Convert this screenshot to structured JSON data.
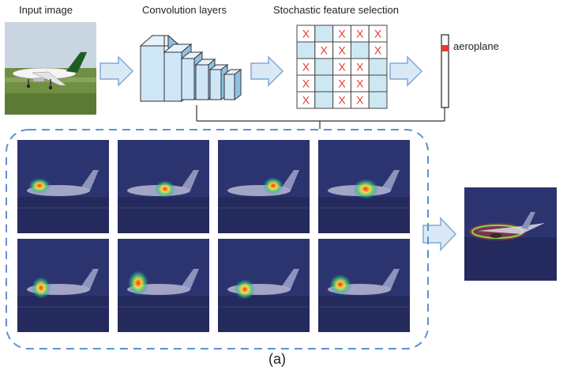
{
  "labels": {
    "input_image": "Input image",
    "convolution_layers": "Convolution layers",
    "stochastic_selection": "Stochastic feature selection",
    "class_label": "aeroplane",
    "caption": "(a)"
  },
  "selection_grid": {
    "marks": [
      [
        true,
        false,
        true,
        true,
        true
      ],
      [
        false,
        true,
        true,
        false,
        true
      ],
      [
        true,
        false,
        true,
        true,
        false
      ],
      [
        true,
        false,
        true,
        true,
        false
      ],
      [
        true,
        false,
        true,
        true,
        false
      ]
    ],
    "mark_glyph": "X"
  },
  "heatmap_grid": {
    "rows": 2,
    "cols": 4
  },
  "colors": {
    "cell_fill": "#cde8f3",
    "cell_border": "#444444",
    "mark": "#e53935",
    "arrow_fill": "#dbe9f6",
    "arrow_stroke": "#7fa9d6",
    "dash_border": "#5b93d6",
    "bar_highlight": "#e53935"
  },
  "icons": {
    "arrow": "right-arrow-icon"
  }
}
